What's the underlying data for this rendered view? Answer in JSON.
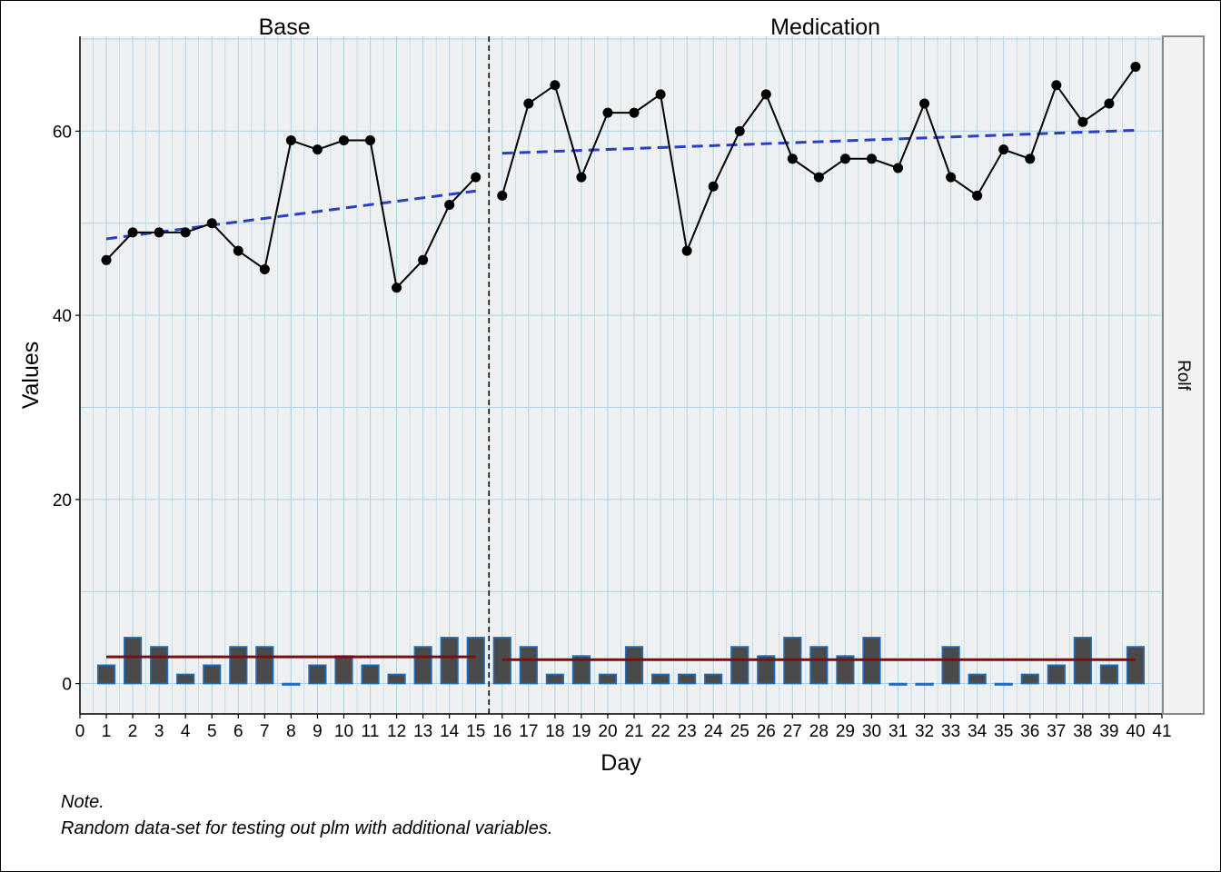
{
  "chart_data": {
    "type": "line",
    "xlabel": "Day",
    "ylabel": "Values",
    "xlim": [
      0,
      41
    ],
    "ylim": [
      -3.3,
      70.3
    ],
    "x_ticks": [
      0,
      1,
      2,
      3,
      4,
      5,
      6,
      7,
      8,
      9,
      10,
      11,
      12,
      13,
      14,
      15,
      16,
      17,
      18,
      19,
      20,
      21,
      22,
      23,
      24,
      25,
      26,
      27,
      28,
      29,
      30,
      31,
      32,
      33,
      34,
      35,
      36,
      37,
      38,
      39,
      40,
      41
    ],
    "y_ticks": [
      0,
      20,
      40,
      60
    ],
    "grid": true,
    "case_label": "Rolf",
    "phases": [
      {
        "label": "Base",
        "x_start": 1,
        "x_end": 15
      },
      {
        "label": "Medication",
        "x_start": 16,
        "x_end": 40
      }
    ],
    "phase_separator_x": 15.5,
    "series": [
      {
        "type": "line",
        "x": [
          1,
          2,
          3,
          4,
          5,
          6,
          7,
          8,
          9,
          10,
          11,
          12,
          13,
          14,
          15,
          16,
          17,
          18,
          19,
          20,
          21,
          22,
          23,
          24,
          25,
          26,
          27,
          28,
          29,
          30,
          31,
          32,
          33,
          34,
          35,
          36,
          37,
          38,
          39,
          40
        ],
        "values": [
          46,
          49,
          49,
          49,
          50,
          47,
          45,
          59,
          58,
          59,
          59,
          43,
          46,
          52,
          55,
          53,
          63,
          65,
          55,
          62,
          62,
          64,
          47,
          54,
          60,
          64,
          57,
          55,
          57,
          57,
          56,
          63,
          55,
          53,
          58,
          57,
          65,
          61,
          63,
          67
        ],
        "color": "#000000"
      },
      {
        "type": "bar",
        "x": [
          1,
          2,
          3,
          4,
          5,
          6,
          7,
          8,
          9,
          10,
          11,
          12,
          13,
          14,
          15,
          16,
          17,
          18,
          19,
          20,
          21,
          22,
          23,
          24,
          25,
          26,
          27,
          28,
          29,
          30,
          31,
          32,
          33,
          34,
          35,
          36,
          37,
          38,
          39,
          40
        ],
        "values": [
          2,
          5,
          4,
          1,
          2,
          4,
          4,
          0,
          2,
          3,
          2,
          1,
          4,
          5,
          5,
          5,
          4,
          1,
          3,
          1,
          4,
          1,
          1,
          1,
          4,
          3,
          5,
          4,
          3,
          5,
          0,
          0,
          4,
          1,
          0,
          1,
          2,
          5,
          2,
          4
        ],
        "fill": "#4a4a4a",
        "stroke": "#1f6fbf"
      }
    ],
    "trend_lines": [
      {
        "type": "dashed",
        "color": "#2a3fc4",
        "segments": [
          {
            "x": [
              1,
              15
            ],
            "y": [
              48.3,
              53.5
            ]
          },
          {
            "x": [
              16,
              40
            ],
            "y": [
              57.6,
              60.1
            ]
          }
        ]
      },
      {
        "type": "solid",
        "color": "#7a0f0f",
        "segments": [
          {
            "x": [
              1,
              15
            ],
            "y": [
              2.9,
              2.9
            ]
          },
          {
            "x": [
              16,
              40
            ],
            "y": [
              2.6,
              2.6
            ]
          }
        ]
      }
    ],
    "colors": {
      "panel_bg": "#eef0f1",
      "grid": "#a9d4e6",
      "strip_bg": "#f2f2f2",
      "strip_border": "#8a8a8a"
    }
  },
  "note": {
    "title": "Note.",
    "text": "Random data-set for testing out plm with additional variables."
  }
}
